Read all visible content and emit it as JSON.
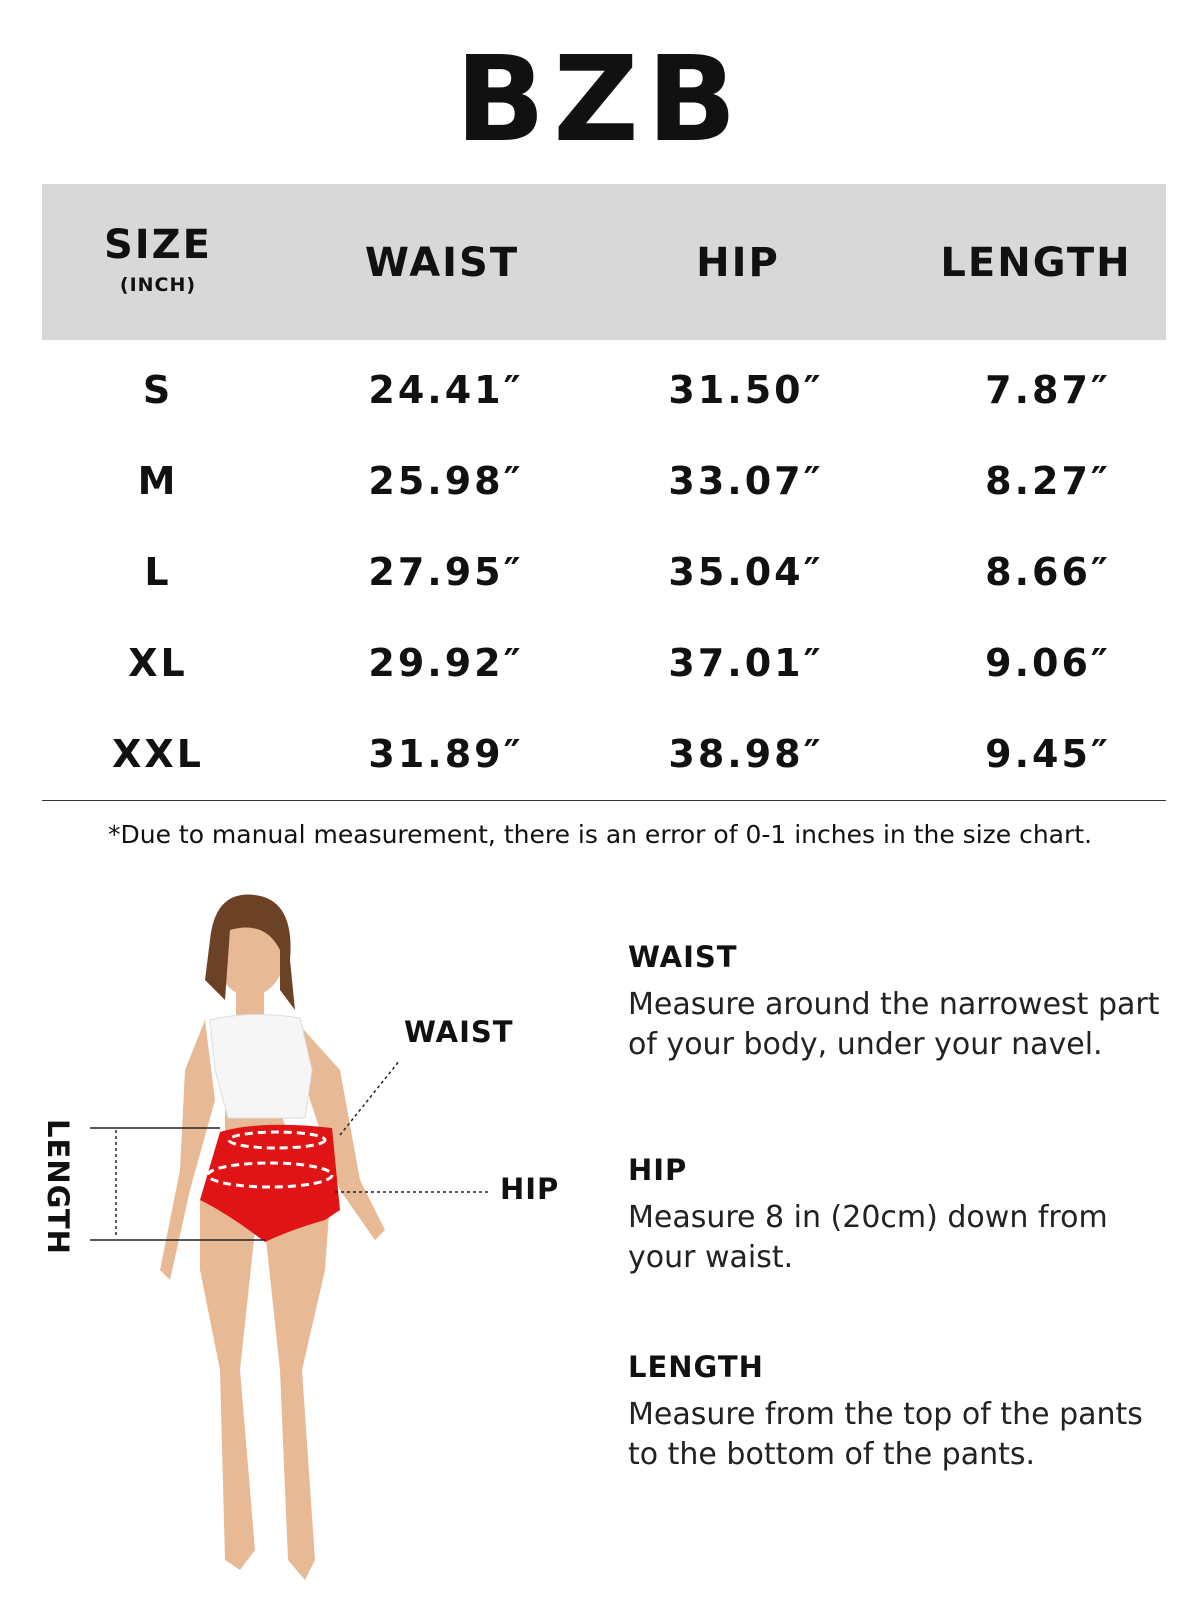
{
  "brand": "BZB",
  "table": {
    "headers": {
      "size": "SIZE",
      "size_unit": "(INCH)",
      "waist": "WAIST",
      "hip": "HIP",
      "length": "LENGTH"
    },
    "rows": [
      {
        "size": "S",
        "waist": "24.41″",
        "hip": "31.50″",
        "length": "7.87″"
      },
      {
        "size": "M",
        "waist": "25.98″",
        "hip": "33.07″",
        "length": "8.27″"
      },
      {
        "size": "L",
        "waist": "27.95″",
        "hip": "35.04″",
        "length": "8.66″"
      },
      {
        "size": "XL",
        "waist": "29.92″",
        "hip": "37.01″",
        "length": "9.06″"
      },
      {
        "size": "XXL",
        "waist": "31.89″",
        "hip": "38.98″",
        "length": "9.45″"
      }
    ]
  },
  "note": "*Due to manual measurement, there is an error of 0-1 inches in the size chart.",
  "figure": {
    "waist_label": "WAIST",
    "hip_label": "HIP",
    "length_label": "LENGTH"
  },
  "guide": [
    {
      "title": "WAIST",
      "text": "Measure around the narrowest part of your body, under your navel."
    },
    {
      "title": "HIP",
      "text": "Measure 8 in (20cm) down from your waist."
    },
    {
      "title": "LENGTH",
      "text": "Measure from the top of the pants to the bottom of the pants."
    }
  ],
  "colors": {
    "header_bg": "#d8d8d8",
    "garment": "#e01414"
  }
}
